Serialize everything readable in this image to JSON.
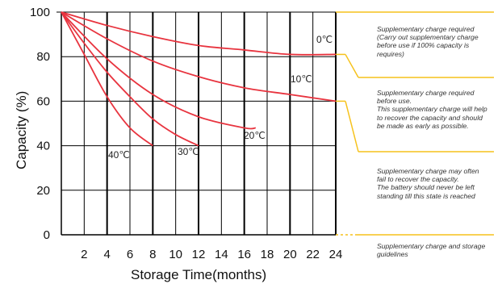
{
  "chart_data": {
    "type": "line",
    "xlabel": "Storage  Time(months)",
    "ylabel": "Capacity  (%)",
    "xlim": [
      0,
      24
    ],
    "ylim": [
      0,
      100
    ],
    "x_ticks": [
      "2",
      "4",
      "6",
      "8",
      "10",
      "12",
      "14",
      "16",
      "18",
      "20",
      "22",
      "24"
    ],
    "y_ticks": [
      "0",
      "20",
      "40",
      "60",
      "80",
      "100"
    ],
    "grid": true,
    "series": [
      {
        "name": "0℃",
        "x": [
          0,
          4,
          8,
          12,
          16,
          20,
          24
        ],
        "y": [
          100,
          94,
          89,
          85,
          83,
          81,
          81
        ]
      },
      {
        "name": "10℃",
        "x": [
          0,
          4,
          8,
          12,
          16,
          20,
          24
        ],
        "y": [
          100,
          88,
          78,
          71,
          66,
          63,
          60
        ]
      },
      {
        "name": "20℃",
        "x": [
          0,
          4,
          8,
          12,
          16,
          17
        ],
        "y": [
          100,
          79,
          63,
          53,
          48,
          48
        ]
      },
      {
        "name": "30℃",
        "x": [
          0,
          2,
          4,
          6,
          8,
          10,
          12
        ],
        "y": [
          100,
          86,
          73,
          62,
          52,
          45,
          40
        ]
      },
      {
        "name": "40℃",
        "x": [
          0,
          2,
          4,
          6,
          8
        ],
        "y": [
          100,
          81,
          62,
          48,
          40
        ]
      }
    ],
    "guidelines": [
      "Supplementary charge required\n(Carry out supplementary charge\nbefore use if 100% capacity is\nrequires)",
      "Supplementary charge required\nbefore use.\nThis supplementary charge will help\nto recover the capacity and should\nbe made  as early as possible.",
      "Supplementary charge may often\nfail to recover the capacity.\nThe battery should never be left\nstanding till this state is reached",
      "Supplementary charge and storage\nguidelines"
    ],
    "colors": {
      "curves": "#e8343f",
      "bracket": "#f6c21c",
      "grid": "#000000"
    }
  }
}
